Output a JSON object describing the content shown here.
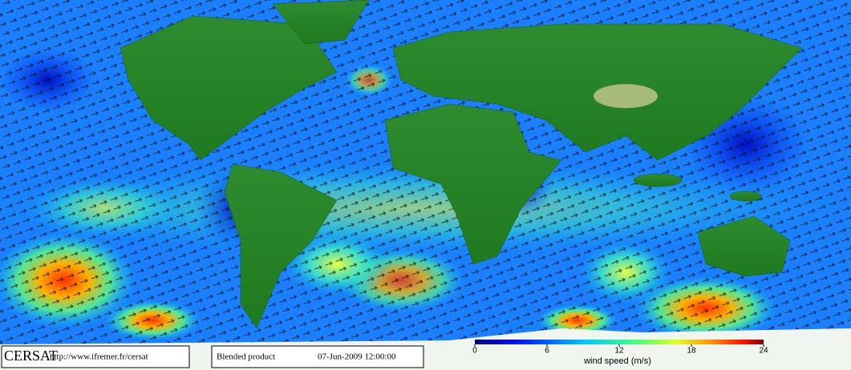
{
  "header": {
    "logo": "CERSAT",
    "url": "http://www.ifremer.fr/cersat"
  },
  "product": {
    "name": "Blended product",
    "date": "07-Jun-2009 12:00:00"
  },
  "colorbar": {
    "label": "wind speed (m/s)",
    "lim": [
      0,
      24
    ],
    "ticks": [
      0,
      6,
      12,
      18,
      24
    ]
  }
}
